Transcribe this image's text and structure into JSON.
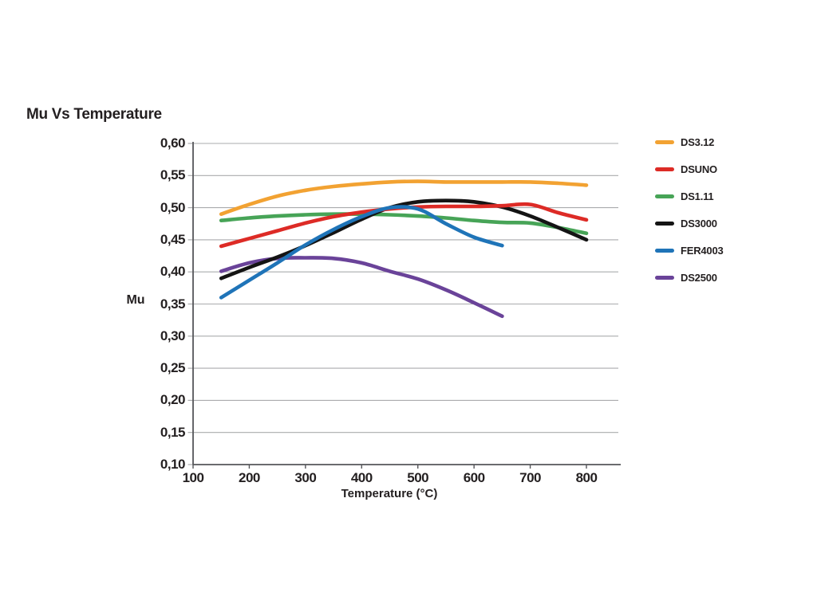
{
  "title": "Mu Vs Temperature",
  "colors": {
    "background": "#ffffff",
    "text": "#231F20",
    "gridline": "#AAABAD",
    "axis": "#55565A"
  },
  "chart_data": {
    "type": "line",
    "title": "Mu Vs Temperature",
    "xlabel": "Temperature (°C)",
    "ylabel": "Mu",
    "xlim": [
      100,
      860
    ],
    "ylim": [
      0.1,
      0.6
    ],
    "grid": "horizontal",
    "legend_position": "right",
    "decimal_separator": ",",
    "x_tick_labels": [
      "100",
      "200",
      "300",
      "400",
      "500",
      "600",
      "700",
      "800"
    ],
    "x_tick_values": [
      100,
      200,
      300,
      400,
      500,
      600,
      700,
      800
    ],
    "y_tick_labels": [
      "0,60",
      "0,55",
      "0,50",
      "0,45",
      "0,40",
      "0,35",
      "0,30",
      "0,25",
      "0,20",
      "0,15",
      "0,10"
    ],
    "y_tick_values": [
      0.6,
      0.55,
      0.5,
      0.45,
      0.4,
      0.35,
      0.3,
      0.25,
      0.2,
      0.15,
      0.1
    ],
    "draw_order": [
      "DS2500",
      "DS1.11",
      "DS3000",
      "DSUNO",
      "FER4003",
      "DS3.12"
    ],
    "series": [
      {
        "name": "DS3.12",
        "color": "#F2A232",
        "points": [
          [
            150,
            0.49
          ],
          [
            200,
            0.505
          ],
          [
            250,
            0.518
          ],
          [
            300,
            0.527
          ],
          [
            350,
            0.533
          ],
          [
            400,
            0.537
          ],
          [
            450,
            0.54
          ],
          [
            500,
            0.541
          ],
          [
            550,
            0.54
          ],
          [
            600,
            0.54
          ],
          [
            650,
            0.54
          ],
          [
            700,
            0.54
          ],
          [
            750,
            0.538
          ],
          [
            800,
            0.535
          ]
        ]
      },
      {
        "name": "DSUNO",
        "color": "#DD2B26",
        "points": [
          [
            150,
            0.44
          ],
          [
            200,
            0.452
          ],
          [
            250,
            0.464
          ],
          [
            300,
            0.476
          ],
          [
            350,
            0.486
          ],
          [
            400,
            0.493
          ],
          [
            450,
            0.498
          ],
          [
            500,
            0.501
          ],
          [
            550,
            0.502
          ],
          [
            600,
            0.502
          ],
          [
            650,
            0.503
          ],
          [
            700,
            0.505
          ],
          [
            750,
            0.492
          ],
          [
            800,
            0.481
          ]
        ]
      },
      {
        "name": "DS1.11",
        "color": "#47A457",
        "points": [
          [
            150,
            0.48
          ],
          [
            200,
            0.484
          ],
          [
            250,
            0.487
          ],
          [
            300,
            0.489
          ],
          [
            350,
            0.49
          ],
          [
            400,
            0.49
          ],
          [
            450,
            0.489
          ],
          [
            500,
            0.487
          ],
          [
            550,
            0.484
          ],
          [
            600,
            0.48
          ],
          [
            650,
            0.477
          ],
          [
            700,
            0.476
          ],
          [
            750,
            0.469
          ],
          [
            800,
            0.46
          ]
        ]
      },
      {
        "name": "DS3000",
        "color": "#141414",
        "points": [
          [
            150,
            0.39
          ],
          [
            200,
            0.407
          ],
          [
            250,
            0.423
          ],
          [
            300,
            0.441
          ],
          [
            350,
            0.461
          ],
          [
            400,
            0.482
          ],
          [
            450,
            0.5
          ],
          [
            500,
            0.509
          ],
          [
            550,
            0.511
          ],
          [
            600,
            0.509
          ],
          [
            650,
            0.501
          ],
          [
            700,
            0.487
          ],
          [
            750,
            0.469
          ],
          [
            800,
            0.45
          ]
        ]
      },
      {
        "name": "FER4003",
        "color": "#1F74B8",
        "points": [
          [
            150,
            0.36
          ],
          [
            200,
            0.387
          ],
          [
            250,
            0.414
          ],
          [
            300,
            0.442
          ],
          [
            350,
            0.466
          ],
          [
            400,
            0.486
          ],
          [
            450,
            0.5
          ],
          [
            500,
            0.498
          ],
          [
            550,
            0.475
          ],
          [
            600,
            0.454
          ],
          [
            650,
            0.441
          ]
        ]
      },
      {
        "name": "DS2500",
        "color": "#6A4399",
        "points": [
          [
            150,
            0.401
          ],
          [
            200,
            0.414
          ],
          [
            250,
            0.421
          ],
          [
            300,
            0.422
          ],
          [
            350,
            0.421
          ],
          [
            400,
            0.414
          ],
          [
            450,
            0.401
          ],
          [
            500,
            0.389
          ],
          [
            550,
            0.372
          ],
          [
            600,
            0.352
          ],
          [
            650,
            0.331
          ]
        ]
      }
    ]
  }
}
